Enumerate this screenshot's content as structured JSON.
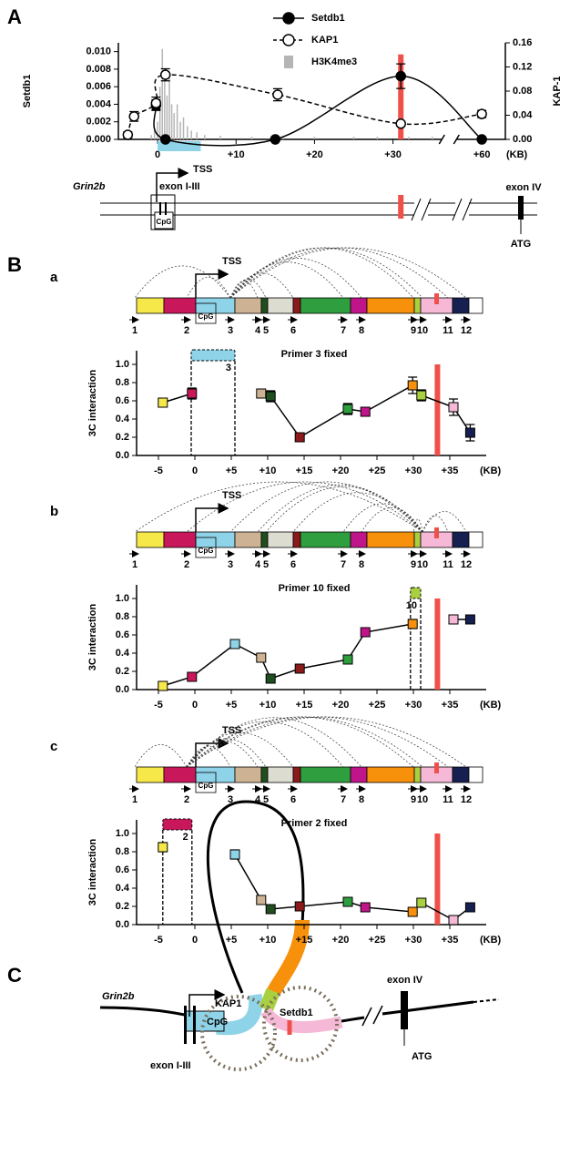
{
  "labels": {
    "A": "A",
    "B": "B",
    "C": "C"
  },
  "gene_map_A": {
    "gene": "Grin2b",
    "tss": "TSS",
    "exon1": "exon I-III",
    "cpg": "CpG",
    "exon4": "exon IV",
    "atg": "ATG"
  },
  "diagram": {
    "gene": "Grin2b",
    "kap1": "KAP1",
    "cpg": "CpG",
    "setdb1": "Setdb1",
    "exon4": "exon IV",
    "atg": "ATG",
    "exon1": "exon I-III"
  },
  "chart_data": [
    {
      "type": "dual-line",
      "ylabel": "Setdb1",
      "y2label": "KAP-1",
      "xlabel": "(KB)",
      "xlim": [
        -5,
        63
      ],
      "xbreak": [
        36,
        57
      ],
      "xticks": [
        0,
        {
          "value": 10,
          "label": "+10"
        },
        {
          "value": 20,
          "label": "+20"
        },
        {
          "value": 30,
          "label": "+30"
        },
        {
          "value": 60,
          "label": "+60"
        }
      ],
      "ylim": [
        0,
        0.011
      ],
      "yticks": [
        {
          "value": 0,
          "label": "0.000"
        },
        {
          "value": 0.002,
          "label": "0.002"
        },
        {
          "value": 0.004,
          "label": "0.004"
        },
        {
          "value": 0.006,
          "label": "0.006"
        },
        {
          "value": 0.008,
          "label": "0.008"
        },
        {
          "value": 0.01,
          "label": "0.010"
        }
      ],
      "y2lim": [
        0,
        0.16
      ],
      "y2ticks": [
        {
          "value": 0,
          "label": "0.00"
        },
        {
          "value": 0.04,
          "label": "0.04"
        },
        {
          "value": 0.08,
          "label": "0.08"
        },
        {
          "value": 0.12,
          "label": "0.12"
        },
        {
          "value": 0.16,
          "label": "0.16"
        }
      ],
      "highlight_x": 31,
      "highlight_color": "#f0504a",
      "region": [
        0,
        5.5
      ],
      "region_color": "#8fd3e8",
      "series": [
        {
          "name": "Setdb1",
          "color": "#000000",
          "style": "solid",
          "marker": "filled",
          "x": [
            -0.2,
            1,
            15,
            31,
            60
          ],
          "values": [
            0.0039,
            0,
            0,
            0.0072,
            0
          ],
          "errors": [
            0.0006,
            null,
            null,
            0.0014,
            null
          ]
        },
        {
          "name": "KAP1",
          "color": "#000000",
          "style": "dashed",
          "marker": "open",
          "axis": "y2",
          "x": [
            -3.8,
            -3,
            -0.2,
            1,
            15.3,
            31,
            60
          ],
          "values": [
            0.0075,
            0.038,
            0.06,
            0.107,
            0.074,
            0.026,
            0.042
          ],
          "errors": [
            0.005,
            0.008,
            0.01,
            0.01,
            0.01,
            0.004,
            0.006
          ]
        },
        {
          "name": "H3K4me3",
          "color": "#b5b5b5",
          "style": "bar",
          "x": [
            -0.8,
            -0.4,
            0,
            0.3,
            0.6,
            0.9,
            1.2,
            1.5,
            1.8,
            2.1,
            2.5,
            2.9,
            3.3,
            3.8,
            4.3,
            5,
            6,
            8,
            12,
            16,
            20,
            25,
            28,
            32,
            35
          ],
          "values": [
            0.0005,
            0.001,
            0.002,
            0.006,
            0.0103,
            0.008,
            0.005,
            0.007,
            0.004,
            0.003,
            0.004,
            0.002,
            0.0025,
            0.0015,
            0.001,
            0.0008,
            0.0005,
            0.0004,
            0.0003,
            0.0003,
            0.0003,
            0.0003,
            0.0003,
            0.0003,
            0.0003
          ]
        }
      ]
    },
    {
      "type": "line",
      "panel": "a",
      "title": "Primer 3 fixed",
      "ylabel": "3C interaction",
      "xlabel": "(KB)",
      "xlim": [
        -8,
        40
      ],
      "xticks": [
        -5,
        0,
        {
          "value": 5,
          "label": "+5"
        },
        {
          "value": 10,
          "label": "+10"
        },
        {
          "value": 15,
          "label": "+15"
        },
        {
          "value": 20,
          "label": "+20"
        },
        {
          "value": 25,
          "label": "+25"
        },
        {
          "value": 30,
          "label": "+30"
        },
        {
          "value": 35,
          "label": "+35"
        }
      ],
      "ylim": [
        0,
        1.15
      ],
      "yticks": [
        {
          "value": 0,
          "label": "0.0"
        },
        {
          "value": 0.2,
          "label": "0.2"
        },
        {
          "value": 0.4,
          "label": "0.4"
        },
        {
          "value": 0.6,
          "label": "0.6"
        },
        {
          "value": 0.8,
          "label": "0.8"
        },
        {
          "value": 1,
          "label": "1.0"
        }
      ],
      "x": [
        -4.4,
        -0.4,
        5.5,
        9.1,
        10.4,
        14.4,
        21,
        23.4,
        29.9,
        31.1,
        35.5,
        37.8
      ],
      "values": [
        0.58,
        0.68,
        null,
        0.68,
        0.65,
        0.2,
        0.51,
        0.48,
        0.77,
        0.66,
        0.53,
        0.25
      ],
      "errors": [
        0.04,
        0.06,
        null,
        0.03,
        0.06,
        0.03,
        0.06,
        0.03,
        0.09,
        0.06,
        0.09,
        0.09
      ],
      "colors": [
        "#f7e84a",
        "#c8175a",
        "#8fd3e8",
        "#cdb394",
        "#1f4f1f",
        "#8b1a1a",
        "#2e9e3e",
        "#c0158a",
        "#f7900a",
        "#a8d040",
        "#f5b8d6",
        "#152050"
      ],
      "fixed": {
        "label": "3",
        "x": [
          -0.5,
          5.5
        ],
        "y": 1.1
      },
      "marker_x": 33.3,
      "map": {
        "tss": "TSS",
        "cpg": "CpG",
        "primers": [
          "1",
          "2",
          "3",
          "4",
          "5",
          "6",
          "7",
          "8",
          "9",
          "10",
          "11",
          "12"
        ]
      }
    },
    {
      "type": "line",
      "panel": "b",
      "title": "Primer 10 fixed",
      "ylabel": "3C interaction",
      "xlabel": "(KB)",
      "xlim": [
        -8,
        40
      ],
      "xticks": [
        -5,
        0,
        {
          "value": 5,
          "label": "+5"
        },
        {
          "value": 10,
          "label": "+10"
        },
        {
          "value": 15,
          "label": "+15"
        },
        {
          "value": 20,
          "label": "+20"
        },
        {
          "value": 25,
          "label": "+25"
        },
        {
          "value": 30,
          "label": "+30"
        },
        {
          "value": 35,
          "label": "+35"
        }
      ],
      "ylim": [
        0,
        1.15
      ],
      "yticks": [
        {
          "value": 0,
          "label": "0.0"
        },
        {
          "value": 0.2,
          "label": "0.2"
        },
        {
          "value": 0.4,
          "label": "0.4"
        },
        {
          "value": 0.6,
          "label": "0.6"
        },
        {
          "value": 0.8,
          "label": "0.8"
        },
        {
          "value": 1,
          "label": "1.0"
        }
      ],
      "x": [
        -4.4,
        -0.4,
        5.5,
        9.1,
        10.4,
        14.4,
        21,
        23.4,
        29.9,
        31.1,
        35.5,
        37.8
      ],
      "values": [
        0.04,
        0.14,
        0.5,
        0.35,
        0.12,
        0.23,
        0.33,
        0.63,
        0.72,
        null,
        0.77,
        0.77
      ],
      "errors": [
        0.02,
        0.02,
        0.02,
        0.03,
        0.03,
        0.02,
        0.03,
        0.03,
        0.05,
        null,
        0.03,
        0.03
      ],
      "colors": [
        "#f7e84a",
        "#c8175a",
        "#8fd3e8",
        "#cdb394",
        "#1f4f1f",
        "#8b1a1a",
        "#2e9e3e",
        "#c0158a",
        "#f7900a",
        "#a8d040",
        "#f5b8d6",
        "#152050"
      ],
      "fixed": {
        "label": "10",
        "x": [
          29.6,
          31
        ],
        "y": 1.06
      },
      "marker_x": 33.3,
      "map": {
        "tss": "TSS",
        "cpg": "CpG",
        "primers": [
          "1",
          "2",
          "3",
          "4",
          "5",
          "6",
          "7",
          "8",
          "9",
          "10",
          "11",
          "12"
        ]
      }
    },
    {
      "type": "line",
      "panel": "c",
      "title": "Primer 2 fixed",
      "ylabel": "3C interaction",
      "xlabel": "(KB)",
      "xlim": [
        -8,
        40
      ],
      "xticks": [
        -5,
        0,
        {
          "value": 5,
          "label": "+5"
        },
        {
          "value": 10,
          "label": "+10"
        },
        {
          "value": 15,
          "label": "+15"
        },
        {
          "value": 20,
          "label": "+20"
        },
        {
          "value": 25,
          "label": "+25"
        },
        {
          "value": 30,
          "label": "+30"
        },
        {
          "value": 35,
          "label": "+35"
        }
      ],
      "ylim": [
        0,
        1.15
      ],
      "yticks": [
        {
          "value": 0,
          "label": "0.0"
        },
        {
          "value": 0.2,
          "label": "0.2"
        },
        {
          "value": 0.4,
          "label": "0.4"
        },
        {
          "value": 0.6,
          "label": "0.6"
        },
        {
          "value": 0.8,
          "label": "0.8"
        },
        {
          "value": 1,
          "label": "1.0"
        }
      ],
      "x": [
        -4.4,
        -0.4,
        5.5,
        9.1,
        10.4,
        14.4,
        21,
        23.4,
        29.9,
        31.1,
        35.5,
        37.8
      ],
      "values": [
        0.85,
        null,
        0.77,
        0.27,
        0.17,
        0.2,
        0.25,
        0.19,
        0.14,
        0.24,
        0.05,
        0.19
      ],
      "errors": [
        0.05,
        null,
        0.05,
        0.03,
        0.03,
        0.03,
        0.03,
        0.02,
        0.02,
        0.02,
        0.02,
        0.03
      ],
      "colors": [
        "#f7e84a",
        "#c8175a",
        "#8fd3e8",
        "#cdb394",
        "#1f4f1f",
        "#8b1a1a",
        "#2e9e3e",
        "#c0158a",
        "#f7900a",
        "#a8d040",
        "#f5b8d6",
        "#152050"
      ],
      "fixed": {
        "label": "2",
        "x": [
          -4.4,
          -0.4
        ],
        "y": 1.1
      },
      "marker_x": 33.3,
      "map": {
        "tss": "TSS",
        "cpg": "CpG",
        "primers": [
          "1",
          "2",
          "3",
          "4",
          "5",
          "6",
          "7",
          "8",
          "9",
          "10",
          "11",
          "12"
        ]
      }
    }
  ]
}
